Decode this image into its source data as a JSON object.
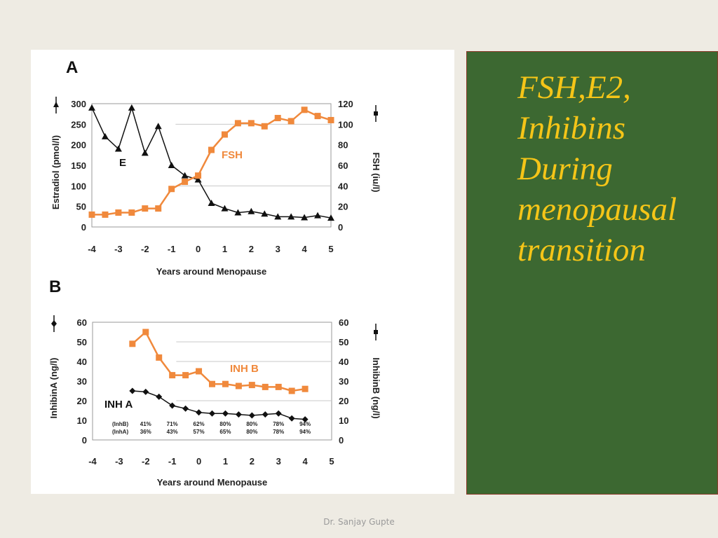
{
  "slide": {
    "title_lines": [
      "FSH,E2,",
      "Inhibins",
      "During",
      "menopausal",
      "transition"
    ],
    "footer": "Dr. Sanjay Gupte"
  },
  "colors": {
    "orange": "#f0893c",
    "black": "#111111",
    "panel_green": "#3c6831",
    "title_yellow": "#f5c518"
  },
  "chart_data": [
    {
      "type": "line",
      "panel": "A",
      "xlabel": "Years around Menopause",
      "ylabel_left": "Estradiol (pmol/l)",
      "ylabel_right": "FSH (iu/l)",
      "xlim": [
        -4,
        5
      ],
      "xticks": [
        -4,
        -3,
        -2,
        -1,
        0,
        1,
        2,
        3,
        4,
        5
      ],
      "ylim_left": [
        0,
        300
      ],
      "yticks_left": [
        0,
        50,
        100,
        150,
        200,
        250,
        300
      ],
      "ylim_right": [
        0,
        120
      ],
      "yticks_right": [
        0,
        20,
        40,
        60,
        80,
        100,
        120
      ],
      "series": [
        {
          "name": "E",
          "axis": "left",
          "marker": "triangle",
          "color": "#111111",
          "x": [
            -4,
            -3.5,
            -3,
            -2.5,
            -2,
            -1.5,
            -1,
            -0.5,
            0,
            0.5,
            1,
            1.5,
            2,
            2.5,
            3,
            3.5,
            4,
            4.5,
            5
          ],
          "y": [
            290,
            220,
            190,
            290,
            180,
            245,
            150,
            125,
            115,
            58,
            45,
            35,
            38,
            32,
            25,
            25,
            23,
            28,
            22
          ]
        },
        {
          "name": "FSH",
          "axis": "right",
          "marker": "square",
          "color": "#f0893c",
          "x": [
            -4,
            -3.5,
            -3,
            -2.5,
            -2,
            -1.5,
            -1,
            -0.5,
            0,
            0.5,
            1,
            1.5,
            2,
            2.5,
            3,
            3.5,
            4,
            4.5,
            5
          ],
          "y": [
            12,
            12,
            14,
            14,
            18,
            18,
            37,
            44,
            50,
            75,
            90,
            101,
            101,
            98,
            106,
            103,
            114,
            108,
            104
          ]
        }
      ]
    },
    {
      "type": "line",
      "panel": "B",
      "xlabel": "Years around Menopause",
      "ylabel_left": "InhibinA (ng/l)",
      "ylabel_right": "InhibinB (ng/l)",
      "xlim": [
        -4,
        5
      ],
      "xticks": [
        -4,
        -3,
        -2,
        -1,
        0,
        1,
        2,
        3,
        4,
        5
      ],
      "ylim_left": [
        0,
        60
      ],
      "yticks_left": [
        0,
        10,
        20,
        30,
        40,
        50,
        60
      ],
      "ylim_right": [
        0,
        60
      ],
      "yticks_right": [
        0,
        10,
        20,
        30,
        40,
        50,
        60
      ],
      "series": [
        {
          "name": "INH B",
          "axis": "right",
          "marker": "square",
          "color": "#f0893c",
          "x": [
            -2.5,
            -2,
            -1.5,
            -1,
            -0.5,
            0,
            0.5,
            1,
            1.5,
            2,
            2.5,
            3,
            3.5,
            4
          ],
          "y": [
            49,
            55,
            42,
            33,
            33,
            35,
            28.5,
            28.5,
            27.5,
            28,
            27,
            27,
            25,
            26
          ]
        },
        {
          "name": "INH A",
          "axis": "left",
          "marker": "diamond",
          "color": "#111111",
          "x": [
            -2.5,
            -2,
            -1.5,
            -1,
            -0.5,
            0,
            0.5,
            1,
            1.5,
            2,
            2.5,
            3,
            3.5,
            4
          ],
          "y": [
            25,
            24.5,
            22,
            17.5,
            16,
            14,
            13.5,
            13.5,
            13,
            12.5,
            13,
            13.5,
            11,
            10.5
          ]
        }
      ],
      "percent_rows": [
        {
          "label": "(InhB)",
          "x": [
            -2,
            -1,
            0,
            1,
            2,
            3,
            4
          ],
          "values": [
            "41%",
            "71%",
            "62%",
            "80%",
            "80%",
            "78%",
            "94%"
          ]
        },
        {
          "label": "(InhA)",
          "x": [
            -2,
            -1,
            0,
            1,
            2,
            3,
            4
          ],
          "values": [
            "36%",
            "43%",
            "57%",
            "65%",
            "80%",
            "78%",
            "94%"
          ]
        }
      ]
    }
  ]
}
